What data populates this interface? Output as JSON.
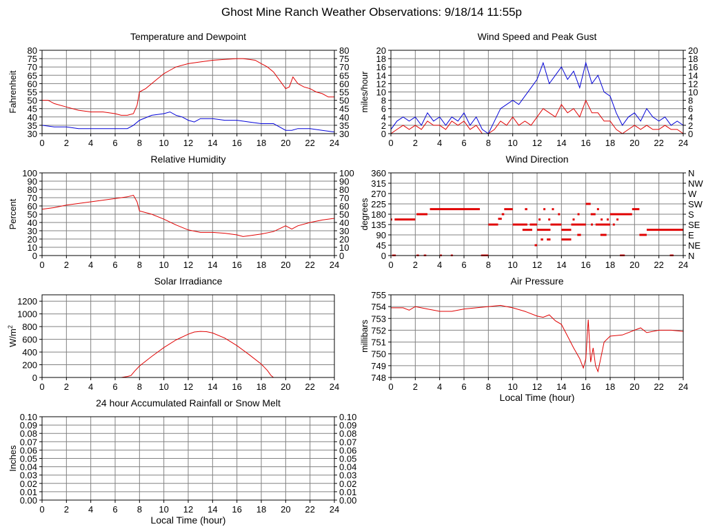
{
  "page": {
    "title": "Ghost Mine Ranch Weather Observations: 9/18/14 11:55p"
  },
  "colors": {
    "red": "#e00000",
    "blue": "#0000d8",
    "grid": "#808080",
    "axis": "#000000"
  },
  "chart_data": [
    {
      "id": "temp",
      "type": "line",
      "title": "Temperature and Dewpoint",
      "ylabel": "Fahrenheit",
      "xlabel": "",
      "xlim": [
        0,
        24
      ],
      "ylim": [
        30,
        80
      ],
      "x_ticks": [
        "0",
        "2",
        "4",
        "6",
        "8",
        "10",
        "12",
        "14",
        "16",
        "18",
        "20",
        "22",
        "24"
      ],
      "y_ticks": [
        "30",
        "35",
        "40",
        "45",
        "50",
        "55",
        "60",
        "65",
        "70",
        "75",
        "80"
      ],
      "y_ticks_right": [
        "30",
        "35",
        "40",
        "45",
        "50",
        "55",
        "60",
        "65",
        "70",
        "75",
        "80"
      ],
      "grid": true,
      "series": [
        {
          "color": "red",
          "x": [
            0,
            0.5,
            1,
            2,
            3,
            4,
            5,
            6,
            6.5,
            7,
            7.5,
            7.8,
            8,
            8.5,
            9,
            9.5,
            10,
            10.5,
            11,
            12,
            13,
            14,
            15,
            16,
            16.5,
            17,
            17.5,
            18,
            18.5,
            19,
            19.5,
            20,
            20.3,
            20.6,
            21,
            21.5,
            22,
            22.5,
            23,
            23.5,
            24
          ],
          "y": [
            50,
            50,
            48,
            46,
            44,
            43,
            43,
            42,
            41,
            41,
            42,
            47,
            55,
            57,
            60,
            63,
            66,
            68,
            70,
            72,
            73,
            74,
            74.5,
            75,
            75,
            74.5,
            74,
            72,
            70,
            67,
            62,
            57,
            58,
            64,
            60,
            58,
            57,
            55,
            54,
            52,
            52
          ]
        },
        {
          "color": "blue",
          "x": [
            0,
            1,
            2,
            3,
            4,
            5,
            6,
            7,
            7.5,
            8,
            9,
            10,
            10.5,
            11,
            11.5,
            12,
            12.5,
            13,
            14,
            15,
            16,
            17,
            18,
            19,
            19.5,
            20,
            20.5,
            21,
            22,
            23,
            24
          ],
          "y": [
            35,
            34,
            34,
            33,
            33,
            33,
            33,
            33,
            35,
            38,
            41,
            42,
            43,
            41,
            40,
            38,
            37,
            39,
            39,
            38,
            38,
            37,
            36,
            36,
            34,
            32,
            32,
            33,
            33,
            32,
            31
          ]
        }
      ]
    },
    {
      "id": "wind",
      "type": "line",
      "title": "Wind Speed and Peak Gust",
      "ylabel": "miles/hour",
      "xlabel": "",
      "xlim": [
        0,
        24
      ],
      "ylim": [
        0,
        20
      ],
      "x_ticks": [
        "0",
        "2",
        "4",
        "6",
        "8",
        "10",
        "12",
        "14",
        "16",
        "18",
        "20",
        "22",
        "24"
      ],
      "y_ticks": [
        "0",
        "2",
        "4",
        "6",
        "8",
        "10",
        "12",
        "14",
        "16",
        "18",
        "20"
      ],
      "y_ticks_right": [
        "0",
        "2",
        "4",
        "6",
        "8",
        "10",
        "12",
        "14",
        "16",
        "18",
        "20"
      ],
      "grid": true,
      "series": [
        {
          "color": "blue",
          "x": [
            0,
            0.5,
            1,
            1.5,
            2,
            2.5,
            3,
            3.5,
            4,
            4.5,
            5,
            5.5,
            6,
            6.5,
            7,
            7.5,
            8,
            8.5,
            9,
            9.5,
            10,
            10.5,
            11,
            11.5,
            12,
            12.5,
            13,
            13.5,
            14,
            14.5,
            15,
            15.5,
            16,
            16.5,
            17,
            17.5,
            18,
            18.5,
            19,
            19.5,
            20,
            20.5,
            21,
            21.5,
            22,
            22.5,
            23,
            23.5,
            24
          ],
          "y": [
            1,
            3,
            4,
            3,
            4,
            2,
            5,
            3,
            4,
            2,
            4,
            3,
            5,
            2,
            4,
            1,
            0,
            3,
            6,
            7,
            8,
            7,
            9,
            11,
            13,
            17,
            12,
            14,
            16,
            13,
            15,
            11,
            17,
            12,
            14,
            10,
            9,
            5,
            2,
            4,
            5,
            3,
            6,
            4,
            3,
            4,
            2,
            3,
            2
          ]
        },
        {
          "color": "red",
          "x": [
            0,
            0.5,
            1,
            1.5,
            2,
            2.5,
            3,
            3.5,
            4,
            4.5,
            5,
            5.5,
            6,
            6.5,
            7,
            7.5,
            8,
            8.5,
            9,
            9.5,
            10,
            10.5,
            11,
            11.5,
            12,
            12.5,
            13,
            13.5,
            14,
            14.5,
            15,
            15.5,
            16,
            16.5,
            17,
            17.5,
            18,
            18.5,
            19,
            19.5,
            20,
            20.5,
            21,
            21.5,
            22,
            22.5,
            23,
            23.5,
            24
          ],
          "y": [
            0,
            1,
            2,
            1,
            2,
            1,
            3,
            2,
            2,
            1,
            3,
            2,
            3,
            1,
            2,
            0,
            0,
            1,
            3,
            2,
            4,
            2,
            3,
            2,
            4,
            6,
            5,
            4,
            7,
            5,
            6,
            4,
            8,
            5,
            5,
            3,
            3,
            1,
            0,
            1,
            2,
            1,
            2,
            1,
            1,
            2,
            1,
            1,
            0
          ]
        }
      ]
    },
    {
      "id": "humidity",
      "type": "line",
      "title": "Relative Humidity",
      "ylabel": "Percent",
      "xlabel": "",
      "xlim": [
        0,
        24
      ],
      "ylim": [
        0,
        100
      ],
      "x_ticks": [
        "0",
        "2",
        "4",
        "6",
        "8",
        "10",
        "12",
        "14",
        "16",
        "18",
        "20",
        "22",
        "24"
      ],
      "y_ticks": [
        "0",
        "10",
        "20",
        "30",
        "40",
        "50",
        "60",
        "70",
        "80",
        "90",
        "100"
      ],
      "y_ticks_right": [
        "0",
        "10",
        "20",
        "30",
        "40",
        "50",
        "60",
        "70",
        "80",
        "90",
        "100"
      ],
      "grid": true,
      "series": [
        {
          "color": "red",
          "x": [
            0,
            1,
            2,
            3,
            4,
            5,
            6,
            7,
            7.5,
            7.8,
            8,
            9,
            10,
            11,
            12,
            13,
            14,
            15,
            16,
            16.5,
            17,
            18,
            19,
            20,
            20.5,
            21,
            22,
            23,
            24
          ],
          "y": [
            56,
            58,
            61,
            63,
            65,
            67,
            69,
            71,
            73,
            65,
            54,
            50,
            44,
            37,
            31,
            28,
            28,
            27,
            25,
            23,
            24,
            26,
            29,
            36,
            32,
            36,
            40,
            43,
            45
          ]
        }
      ]
    },
    {
      "id": "direction",
      "type": "scatter",
      "title": "Wind Direction",
      "ylabel": "degrees",
      "xlabel": "",
      "xlim": [
        0,
        24
      ],
      "ylim": [
        0,
        360
      ],
      "x_ticks": [
        "0",
        "2",
        "4",
        "6",
        "8",
        "10",
        "12",
        "14",
        "16",
        "18",
        "20",
        "22",
        "24"
      ],
      "y_ticks": [
        "0",
        "45",
        "90",
        "135",
        "180",
        "225",
        "270",
        "315",
        "360"
      ],
      "y_ticks_right": [
        "N",
        "NE",
        "E",
        "SE",
        "S",
        "SW",
        "W",
        "NW",
        "N"
      ],
      "grid": true,
      "segments": [
        {
          "x0": 0,
          "x1": 0.1,
          "y": 157
        },
        {
          "x0": 0.3,
          "x1": 2,
          "y": 157
        },
        {
          "x0": 2.1,
          "x1": 3,
          "y": 180
        },
        {
          "x0": 3.2,
          "x1": 7.3,
          "y": 202
        },
        {
          "x0": 0.1,
          "x1": 0.4,
          "y": 0
        },
        {
          "x0": 2.1,
          "x1": 2.3,
          "y": 0
        },
        {
          "x0": 2.7,
          "x1": 2.9,
          "y": 0
        },
        {
          "x0": 7.4,
          "x1": 8,
          "y": 0
        },
        {
          "x0": 8,
          "x1": 8.8,
          "y": 135
        },
        {
          "x0": 8.8,
          "x1": 9.1,
          "y": 160
        },
        {
          "x0": 9.1,
          "x1": 9.3,
          "y": 180
        },
        {
          "x0": 9.3,
          "x1": 10,
          "y": 202
        },
        {
          "x0": 10,
          "x1": 11.2,
          "y": 135
        },
        {
          "x0": 11,
          "x1": 11.2,
          "y": 202
        },
        {
          "x0": 10.8,
          "x1": 11.6,
          "y": 112
        },
        {
          "x0": 11.4,
          "x1": 12,
          "y": 135
        },
        {
          "x0": 12,
          "x1": 13.1,
          "y": 112
        },
        {
          "x0": 13.1,
          "x1": 14,
          "y": 135
        },
        {
          "x0": 14,
          "x1": 14.8,
          "y": 112
        },
        {
          "x0": 14.8,
          "x1": 16,
          "y": 135
        },
        {
          "x0": 16,
          "x1": 16.4,
          "y": 225
        },
        {
          "x0": 16.4,
          "x1": 16.8,
          "y": 180
        },
        {
          "x0": 16.8,
          "x1": 18,
          "y": 135
        },
        {
          "x0": 18,
          "x1": 19.8,
          "y": 180
        },
        {
          "x0": 19.8,
          "x1": 20.4,
          "y": 202
        },
        {
          "x0": 20.4,
          "x1": 21,
          "y": 90
        },
        {
          "x0": 21,
          "x1": 24,
          "y": 112
        },
        {
          "x0": 18.8,
          "x1": 19.2,
          "y": 0
        },
        {
          "x0": 22.9,
          "x1": 23.2,
          "y": 0
        },
        {
          "x0": 12.3,
          "x1": 12.5,
          "y": 70
        },
        {
          "x0": 12.8,
          "x1": 13.1,
          "y": 70
        },
        {
          "x0": 14,
          "x1": 14.8,
          "y": 70
        },
        {
          "x0": 15.3,
          "x1": 15.6,
          "y": 90
        },
        {
          "x0": 17.2,
          "x1": 17.7,
          "y": 90
        },
        {
          "x0": 11.8,
          "x1": 12,
          "y": 45
        }
      ],
      "points_x": [
        4.1,
        5,
        12.2,
        12.6,
        13,
        13.3,
        13.8,
        15,
        15.4,
        16.5,
        17,
        17.3,
        17.8,
        18.3,
        18.6
      ],
      "points_y": [
        0,
        0,
        157,
        202,
        157,
        202,
        180,
        157,
        180,
        135,
        202,
        157,
        157,
        135,
        157
      ]
    },
    {
      "id": "solar",
      "type": "line",
      "title": "Solar Irradiance",
      "ylabel": "W/m",
      "ylabel_sup": "2",
      "xlabel": "",
      "xlim": [
        0,
        24
      ],
      "ylim": [
        0,
        1300
      ],
      "x_ticks": [
        "0",
        "2",
        "4",
        "6",
        "8",
        "10",
        "12",
        "14",
        "16",
        "18",
        "20",
        "22",
        "24"
      ],
      "y_ticks": [
        "0",
        "200",
        "400",
        "600",
        "800",
        "1000",
        "1200"
      ],
      "y_values": [
        0,
        200,
        400,
        600,
        800,
        1000,
        1200
      ],
      "y_ticks_right": [],
      "grid": true,
      "series": [
        {
          "color": "red",
          "x": [
            0,
            6.5,
            7,
            7.3,
            7.6,
            8,
            9,
            10,
            11,
            12,
            12.5,
            13,
            13.5,
            14,
            15,
            16,
            17,
            18,
            18.5,
            18.8,
            19,
            24
          ],
          "y": [
            0,
            0,
            15,
            30,
            100,
            180,
            330,
            470,
            590,
            680,
            715,
            725,
            720,
            700,
            620,
            500,
            360,
            210,
            110,
            30,
            0,
            0
          ]
        }
      ]
    },
    {
      "id": "pressure",
      "type": "line",
      "title": "Air Pressure",
      "ylabel": "millibars",
      "xlabel": "Local Time (hour)",
      "xlim": [
        0,
        24
      ],
      "ylim": [
        748,
        755
      ],
      "x_ticks": [
        "0",
        "2",
        "4",
        "6",
        "8",
        "10",
        "12",
        "14",
        "16",
        "18",
        "20",
        "22",
        "24"
      ],
      "y_ticks": [
        "748",
        "749",
        "750",
        "751",
        "752",
        "753",
        "754",
        "755"
      ],
      "y_ticks_right": [],
      "grid": true,
      "series": [
        {
          "color": "red",
          "x": [
            0,
            1,
            1.5,
            2,
            3,
            4,
            5,
            6,
            7,
            8,
            9,
            9.5,
            10,
            11,
            12,
            12.5,
            13,
            13.5,
            14,
            14.5,
            15,
            15.5,
            15.8,
            16,
            16.2,
            16.4,
            16.6,
            16.8,
            17,
            17.2,
            17.5,
            18,
            19,
            20,
            20.5,
            21,
            22,
            23,
            24
          ],
          "y": [
            753.9,
            753.9,
            753.7,
            754.0,
            753.8,
            753.6,
            753.6,
            753.8,
            753.9,
            754.0,
            754.1,
            754.0,
            753.9,
            753.6,
            753.2,
            753.1,
            753.3,
            752.8,
            752.5,
            751.5,
            750.5,
            749.6,
            748.8,
            749.6,
            752.9,
            749.3,
            750.5,
            749.0,
            748.5,
            749.5,
            751.0,
            751.5,
            751.6,
            752.0,
            752.2,
            751.8,
            752.0,
            752.0,
            751.9
          ]
        }
      ]
    },
    {
      "id": "rain",
      "type": "line",
      "title": "24 hour Accumulated Rainfall or Snow Melt",
      "ylabel": "Inches",
      "xlabel": "Local Time (hour)",
      "xlim": [
        0,
        24
      ],
      "ylim": [
        0,
        0.1
      ],
      "x_ticks": [
        "0",
        "2",
        "4",
        "6",
        "8",
        "10",
        "12",
        "14",
        "16",
        "18",
        "20",
        "22",
        "24"
      ],
      "y_ticks": [
        "0.00",
        "0.01",
        "0.02",
        "0.03",
        "0.04",
        "0.05",
        "0.06",
        "0.07",
        "0.08",
        "0.09",
        "0.10"
      ],
      "y_ticks_right": [
        "0.00",
        "0.01",
        "0.02",
        "0.03",
        "0.04",
        "0.05",
        "0.06",
        "0.07",
        "0.08",
        "0.09",
        "0.10"
      ],
      "grid": true,
      "series": [
        {
          "color": "red",
          "x": [
            0,
            24
          ],
          "y": [
            0,
            0
          ]
        }
      ]
    }
  ]
}
